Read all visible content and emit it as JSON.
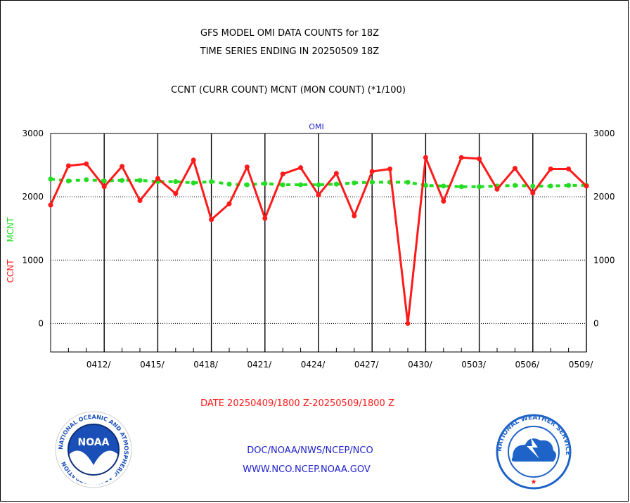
{
  "header": {
    "title_line1": "GFS MODEL OMI DATA COUNTS for 18Z",
    "title_line2": "TIME SERIES ENDING IN 20250509 18Z",
    "subtitle": "CCNT (CURR COUNT) MCNT (MON COUNT) (*1/100)"
  },
  "footer": {
    "date_range": "DATE 20250409/1800 Z-20250509/1800 Z",
    "org_path": "DOC/NOAA/NWS/NCEP/NCO",
    "website": "WWW.NCO.NCEP.NOAA.GOV",
    "noaa_logo_text": "NOAA",
    "noaa_ring_text": "NATIONAL OCEANIC AND ATMOSPHERIC ADMINISTRATION",
    "noaa_ring_text_bottom": "U.S. DEPARTMENT OF COMMERCE",
    "nws_ring_text": "NATIONAL WEATHER SERVICE"
  },
  "colors": {
    "ccnt": "#ff1a1a",
    "mcnt": "#22dd22",
    "label_blue": "#2222cc",
    "noaa_blue": "#1a4fb8",
    "nws_blue": "#1e63c8"
  },
  "chart_data": {
    "type": "line",
    "title": "OMI",
    "ylabel_ccnt": "CCNT",
    "ylabel_mcnt": "MCNT",
    "ylim": [
      -450,
      3000
    ],
    "yticks": [
      0,
      1000,
      2000,
      3000
    ],
    "ytick_labels": [
      "0",
      "1000",
      "2000",
      "3000"
    ],
    "xlim": [
      0,
      30
    ],
    "x_tick_labels": [
      "0412/",
      "0415/",
      "0418/",
      "0421/",
      "0424/",
      "0427/",
      "0430/",
      "0503/",
      "0506/",
      "0509/"
    ],
    "x_tick_positions": [
      3,
      6,
      9,
      12,
      15,
      18,
      21,
      24,
      27,
      30
    ],
    "series": [
      {
        "name": "CCNT",
        "values": [
          1870,
          2490,
          2520,
          2160,
          2480,
          1940,
          2290,
          2050,
          2580,
          1640,
          1890,
          2470,
          1660,
          2360,
          2460,
          2030,
          2370,
          1700,
          2400,
          2440,
          0,
          2620,
          1930,
          2620,
          2600,
          2120,
          2450,
          2060,
          2440,
          2440,
          2170
        ]
      },
      {
        "name": "MCNT",
        "values": [
          2280,
          2250,
          2270,
          2250,
          2260,
          2260,
          2240,
          2240,
          2220,
          2240,
          2200,
          2190,
          2210,
          2190,
          2190,
          2190,
          2200,
          2220,
          2230,
          2230,
          2230,
          2180,
          2170,
          2160,
          2160,
          2170,
          2180,
          2170,
          2170,
          2180,
          2180
        ]
      }
    ]
  }
}
